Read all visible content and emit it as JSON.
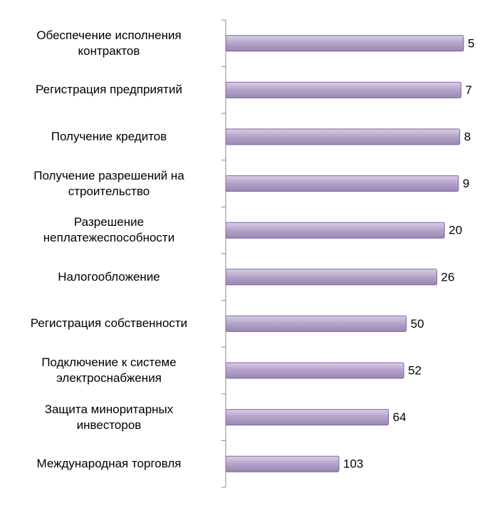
{
  "chart_data": {
    "type": "bar",
    "orientation": "horizontal",
    "categories": [
      "Обеспечение исполнения\nконтрактов",
      "Регистрация предприятий",
      "Получение кредитов",
      "Получение разрешений на\nстроительство",
      "Разрешение\nнеплатежеспособности",
      "Налогообложение",
      "Регистрация собственности",
      "Подключение к системе\nэлектроснабжения",
      "Защита миноритарных\nинвесторов",
      "Международная торговля"
    ],
    "values": [
      5,
      7,
      8,
      9,
      20,
      26,
      50,
      52,
      64,
      103
    ],
    "color": "#b3a2c7",
    "xlim": [
      192,
      0
    ]
  }
}
